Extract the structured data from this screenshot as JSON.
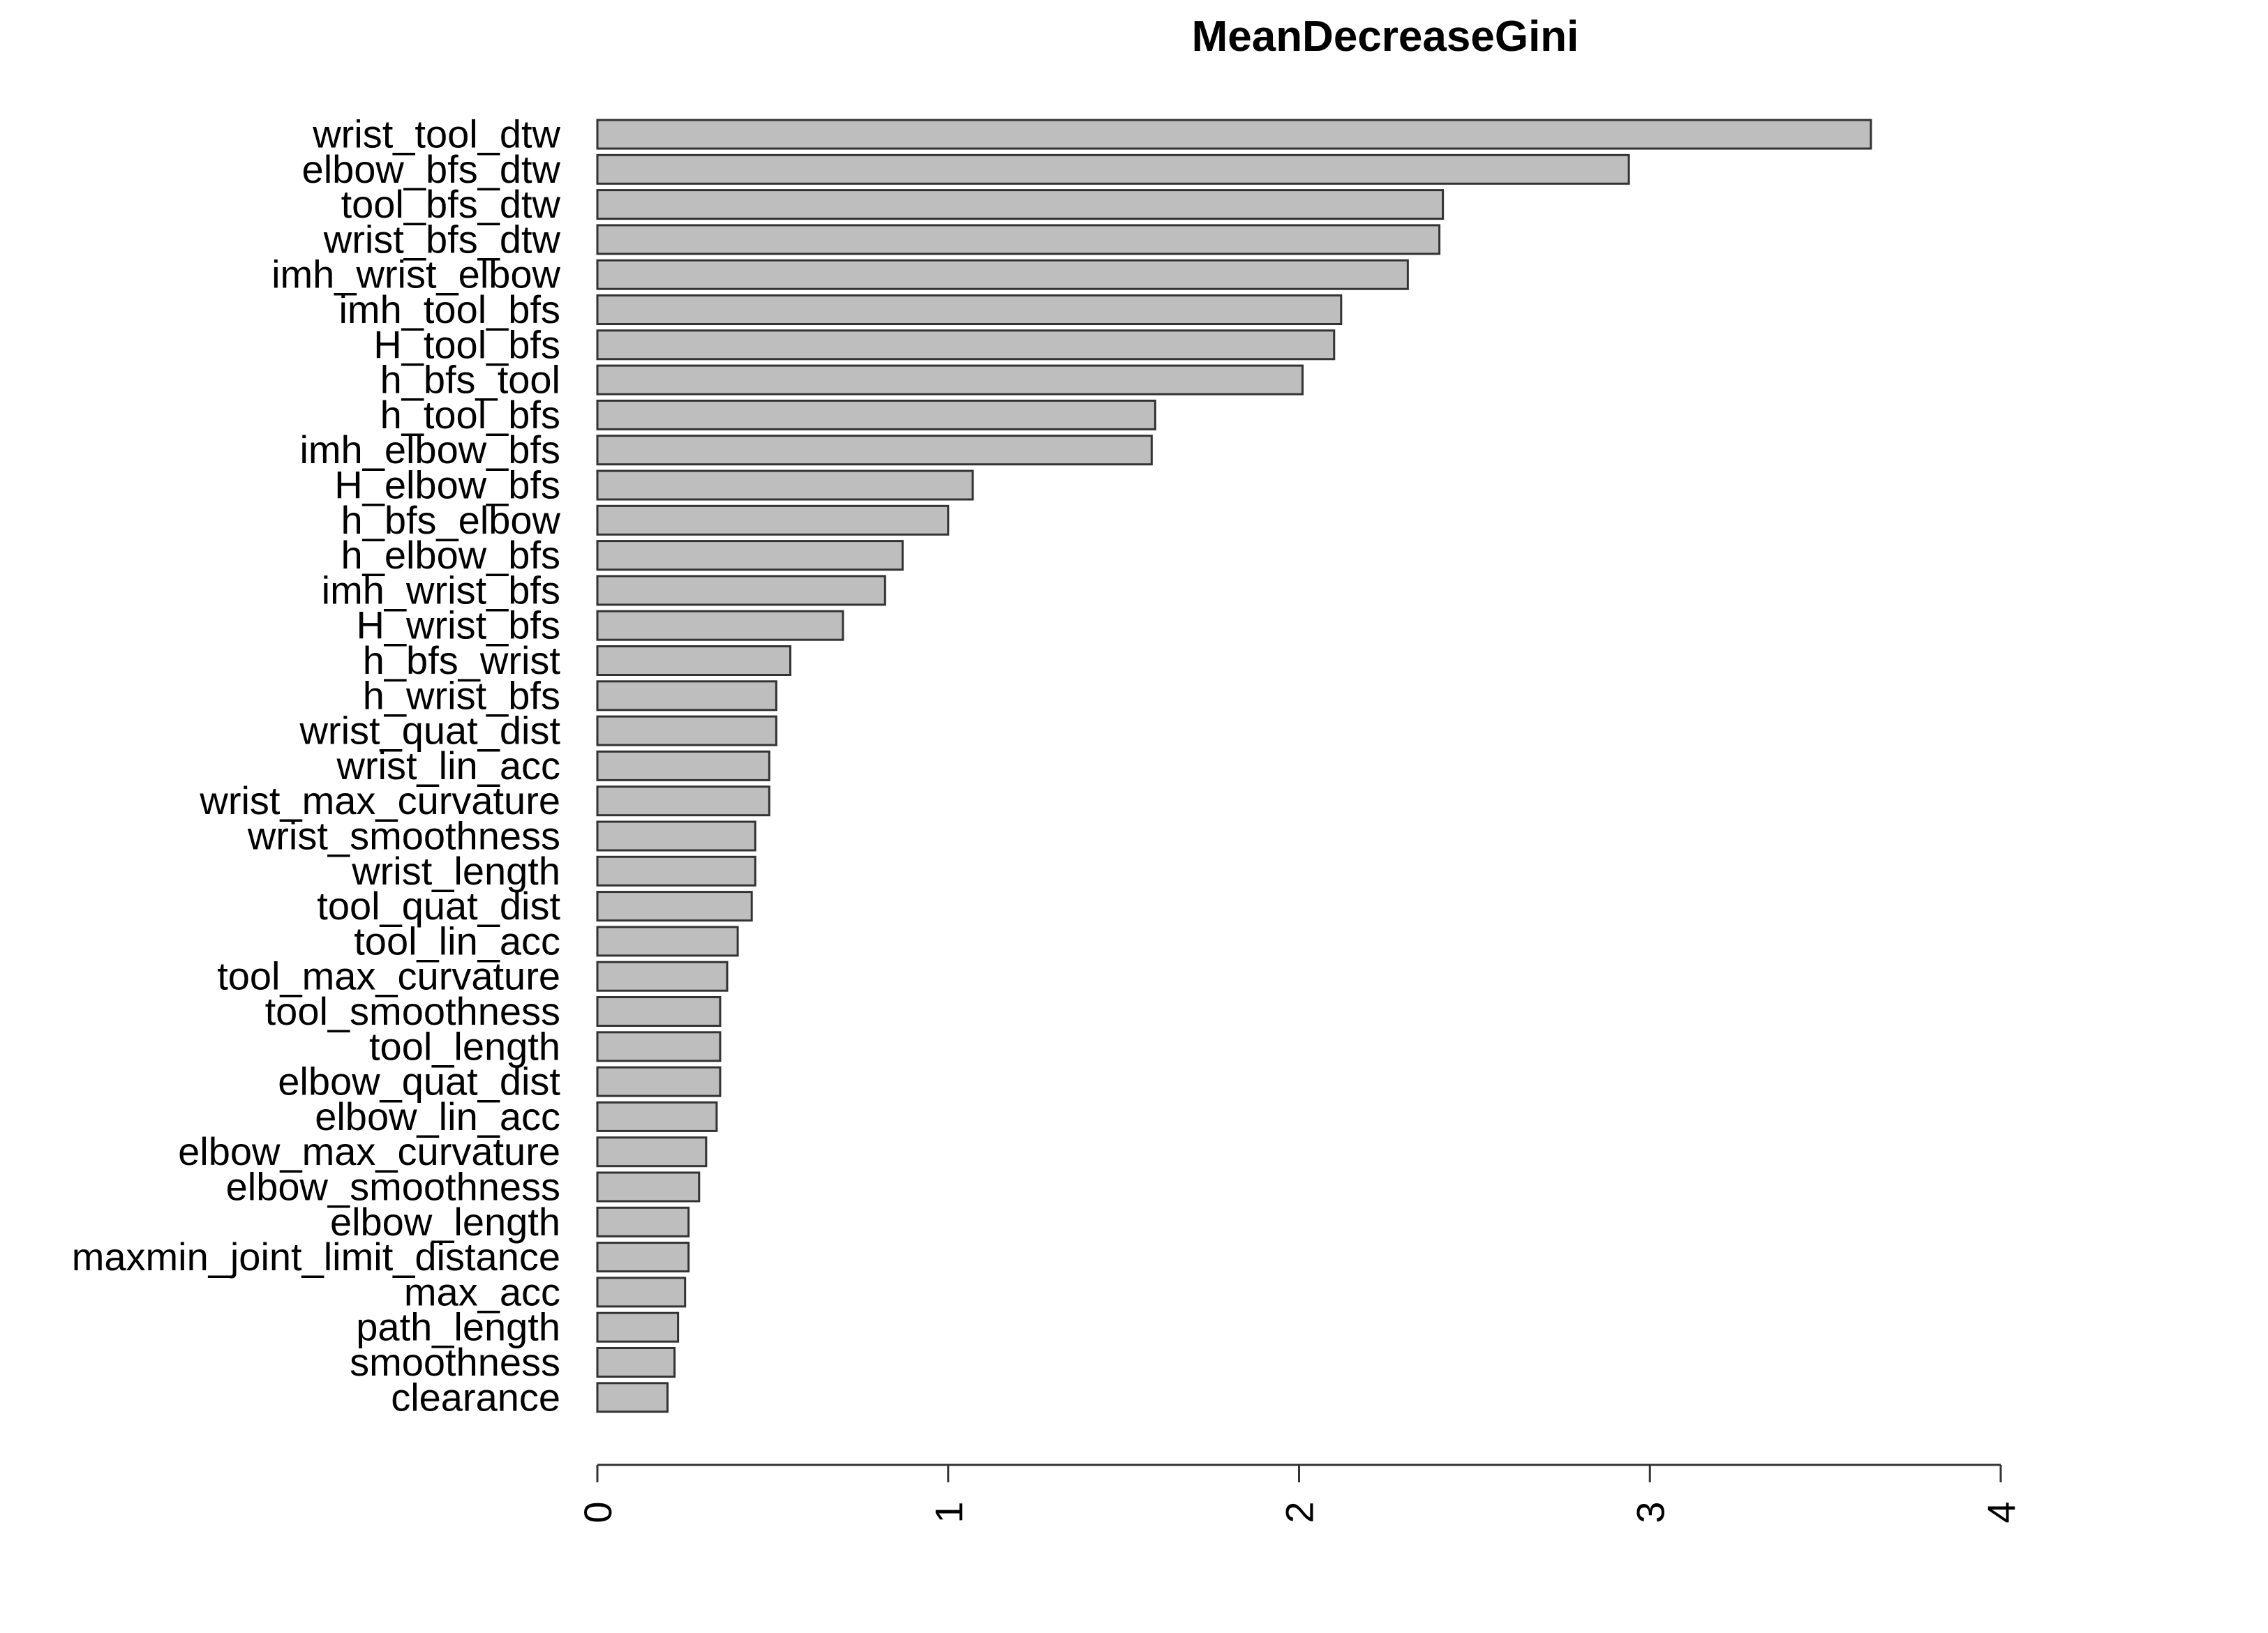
{
  "chart_data": {
    "type": "bar",
    "orientation": "horizontal",
    "title": "MeanDecreaseGini",
    "xlabel": "",
    "ylabel": "",
    "xlim": [
      0,
      4
    ],
    "x_ticks": [
      "0",
      "1",
      "2",
      "3",
      "4"
    ],
    "grid": false,
    "legend": "none",
    "bar_color": "#bebebe",
    "bar_border_color": "#333333",
    "categories": [
      "wrist_tool_dtw",
      "elbow_bfs_dtw",
      "tool_bfs_dtw",
      "wrist_bfs_dtw",
      "imh_wrist_elbow",
      "imh_tool_bfs",
      "H_tool_bfs",
      "h_bfs_tool",
      "h_tool_bfs",
      "imh_elbow_bfs",
      "H_elbow_bfs",
      "h_bfs_elbow",
      "h_elbow_bfs",
      "imh_wrist_bfs",
      "H_wrist_bfs",
      "h_bfs_wrist",
      "h_wrist_bfs",
      "wrist_quat_dist",
      "wrist_lin_acc",
      "wrist_max_curvature",
      "wrist_smoothness",
      "wrist_length",
      "tool_quat_dist",
      "tool_lin_acc",
      "tool_max_curvature",
      "tool_smoothness",
      "tool_length",
      "elbow_quat_dist",
      "elbow_lin_acc",
      "elbow_max_curvature",
      "elbow_smoothness",
      "elbow_length",
      "maxmin_joint_limit_distance",
      "max_acc",
      "path_length",
      "smoothness",
      "clearance"
    ],
    "values": [
      3.63,
      2.94,
      2.41,
      2.4,
      2.31,
      2.12,
      2.1,
      2.01,
      1.59,
      1.58,
      1.07,
      1.0,
      0.87,
      0.82,
      0.7,
      0.55,
      0.51,
      0.51,
      0.49,
      0.49,
      0.45,
      0.45,
      0.44,
      0.4,
      0.37,
      0.35,
      0.35,
      0.35,
      0.34,
      0.31,
      0.29,
      0.26,
      0.26,
      0.25,
      0.23,
      0.22,
      0.2
    ]
  }
}
